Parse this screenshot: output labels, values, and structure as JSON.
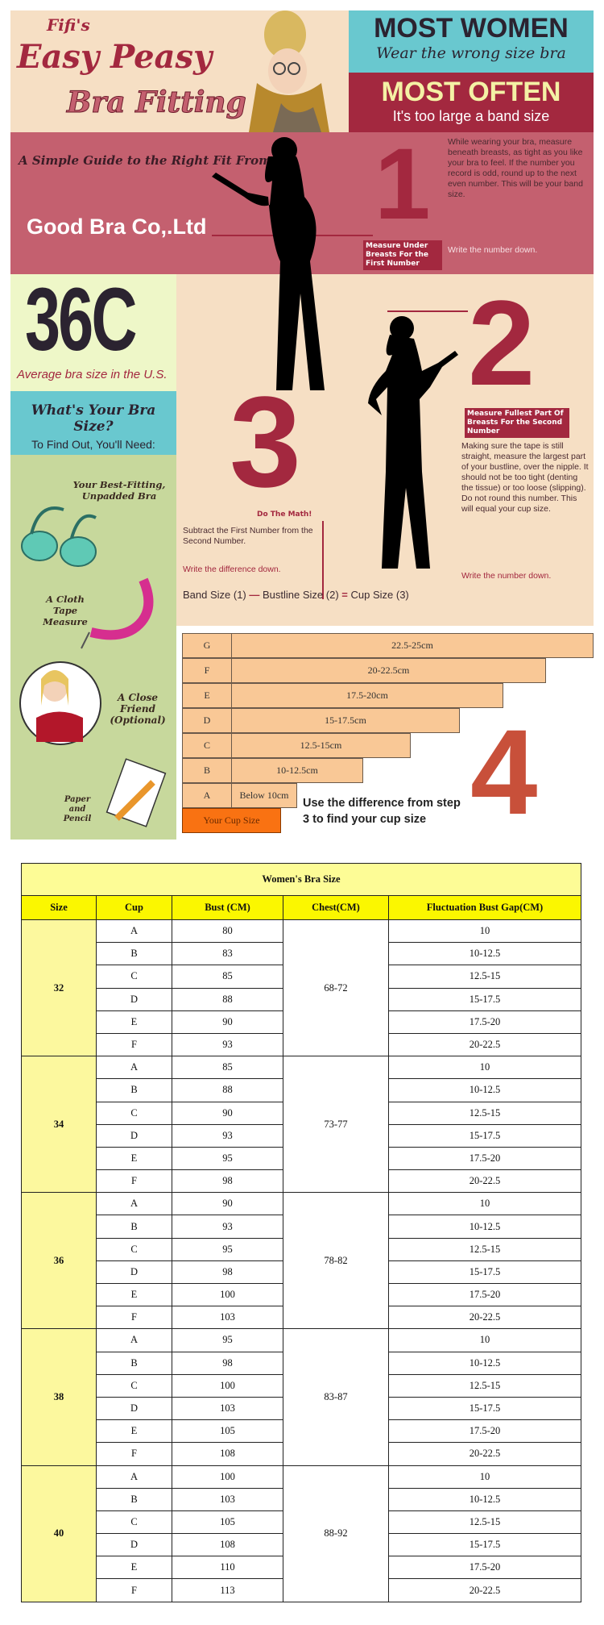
{
  "header": {
    "fifis": "Fifi's",
    "easy_peasy": "Easy Peasy",
    "bra_fitting": "Bra Fitting",
    "most_women": "MOST WOMEN",
    "wear_wrong": "Wear the wrong size bra",
    "most_often": "MOST OFTEN",
    "too_large": "It's too large a band size"
  },
  "step1": {
    "guide": "A Simple Guide to the Right Fit From",
    "brand": "Good Bra Co,.Ltd",
    "number": "1",
    "label": "Measure Under Breasts For the First Number",
    "text": "While wearing your bra, measure beneath breasts, as tight as you like your bra to feel. If the number you record is odd, round up to the next even number. This will be your band size.",
    "write": "Write the number down."
  },
  "stat": {
    "value": "36C",
    "caption": "Average bra size in the U.S."
  },
  "needs": {
    "title": "What's Your Bra Size?",
    "subtitle": "To Find Out, You'll Need:",
    "items": [
      "Your Best-Fitting, Unpadded Bra",
      "A Cloth Tape Measure",
      "A Close Friend (Optional)",
      "Paper and Pencil"
    ]
  },
  "step2": {
    "number": "2",
    "label": "Measure Fullest Part Of Breasts For the Second Number",
    "text": "Making sure the tape is still straight, measure the largest part of your bustline, over the nipple. It should not be too tight (denting the tissue) or too loose (slipping). Do not round this number. This will equal your cup size.",
    "write": "Write the number down."
  },
  "step3": {
    "number": "3",
    "label": "Do The Math!",
    "text": "Subtract the First Number from the Second Number.",
    "write": "Write the difference down.",
    "formula": {
      "a": "Band Size (1)",
      "b": "Bustline Size (2)",
      "c": "Cup Size (3)"
    }
  },
  "step4": {
    "number": "4",
    "text": "Use the difference from step 3 to find your cup size",
    "footer": "Your Cup Size",
    "rows": [
      {
        "cup": "G",
        "range": "22.5-25cm",
        "fill": 1.0
      },
      {
        "cup": "F",
        "range": "20-22.5cm",
        "fill": 0.885
      },
      {
        "cup": "E",
        "range": "17.5-20cm",
        "fill": 0.78
      },
      {
        "cup": "D",
        "range": "15-17.5cm",
        "fill": 0.675
      },
      {
        "cup": "C",
        "range": "12.5-15cm",
        "fill": 0.555
      },
      {
        "cup": "B",
        "range": "10-12.5cm",
        "fill": 0.44
      },
      {
        "cup": "A",
        "range": "Below 10cm",
        "fill": 0.28
      }
    ]
  },
  "table": {
    "title": "Women's Bra Size",
    "headers": [
      "Size",
      "Cup",
      "Bust (CM)",
      "Chest(CM)",
      "Fluctuation Bust Gap(CM)"
    ],
    "groups": [
      {
        "size": "32",
        "chest": "68-72",
        "rows": [
          [
            "A",
            "80",
            "10"
          ],
          [
            "B",
            "83",
            "10-12.5"
          ],
          [
            "C",
            "85",
            "12.5-15"
          ],
          [
            "D",
            "88",
            "15-17.5"
          ],
          [
            "E",
            "90",
            "17.5-20"
          ],
          [
            "F",
            "93",
            "20-22.5"
          ]
        ]
      },
      {
        "size": "34",
        "chest": "73-77",
        "rows": [
          [
            "A",
            "85",
            "10"
          ],
          [
            "B",
            "88",
            "10-12.5"
          ],
          [
            "C",
            "90",
            "12.5-15"
          ],
          [
            "D",
            "93",
            "15-17.5"
          ],
          [
            "E",
            "95",
            "17.5-20"
          ],
          [
            "F",
            "98",
            "20-22.5"
          ]
        ]
      },
      {
        "size": "36",
        "chest": "78-82",
        "rows": [
          [
            "A",
            "90",
            "10"
          ],
          [
            "B",
            "93",
            "10-12.5"
          ],
          [
            "C",
            "95",
            "12.5-15"
          ],
          [
            "D",
            "98",
            "15-17.5"
          ],
          [
            "E",
            "100",
            "17.5-20"
          ],
          [
            "F",
            "103",
            "20-22.5"
          ]
        ]
      },
      {
        "size": "38",
        "chest": "83-87",
        "rows": [
          [
            "A",
            "95",
            "10"
          ],
          [
            "B",
            "98",
            "10-12.5"
          ],
          [
            "C",
            "100",
            "12.5-15"
          ],
          [
            "D",
            "103",
            "15-17.5"
          ],
          [
            "E",
            "105",
            "17.5-20"
          ],
          [
            "F",
            "108",
            "20-22.5"
          ]
        ]
      },
      {
        "size": "40",
        "chest": "88-92",
        "rows": [
          [
            "A",
            "100",
            "10"
          ],
          [
            "B",
            "103",
            "10-12.5"
          ],
          [
            "C",
            "105",
            "12.5-15"
          ],
          [
            "D",
            "108",
            "15-17.5"
          ],
          [
            "E",
            "110",
            "17.5-20"
          ],
          [
            "F",
            "113",
            "20-22.5"
          ]
        ]
      }
    ]
  }
}
